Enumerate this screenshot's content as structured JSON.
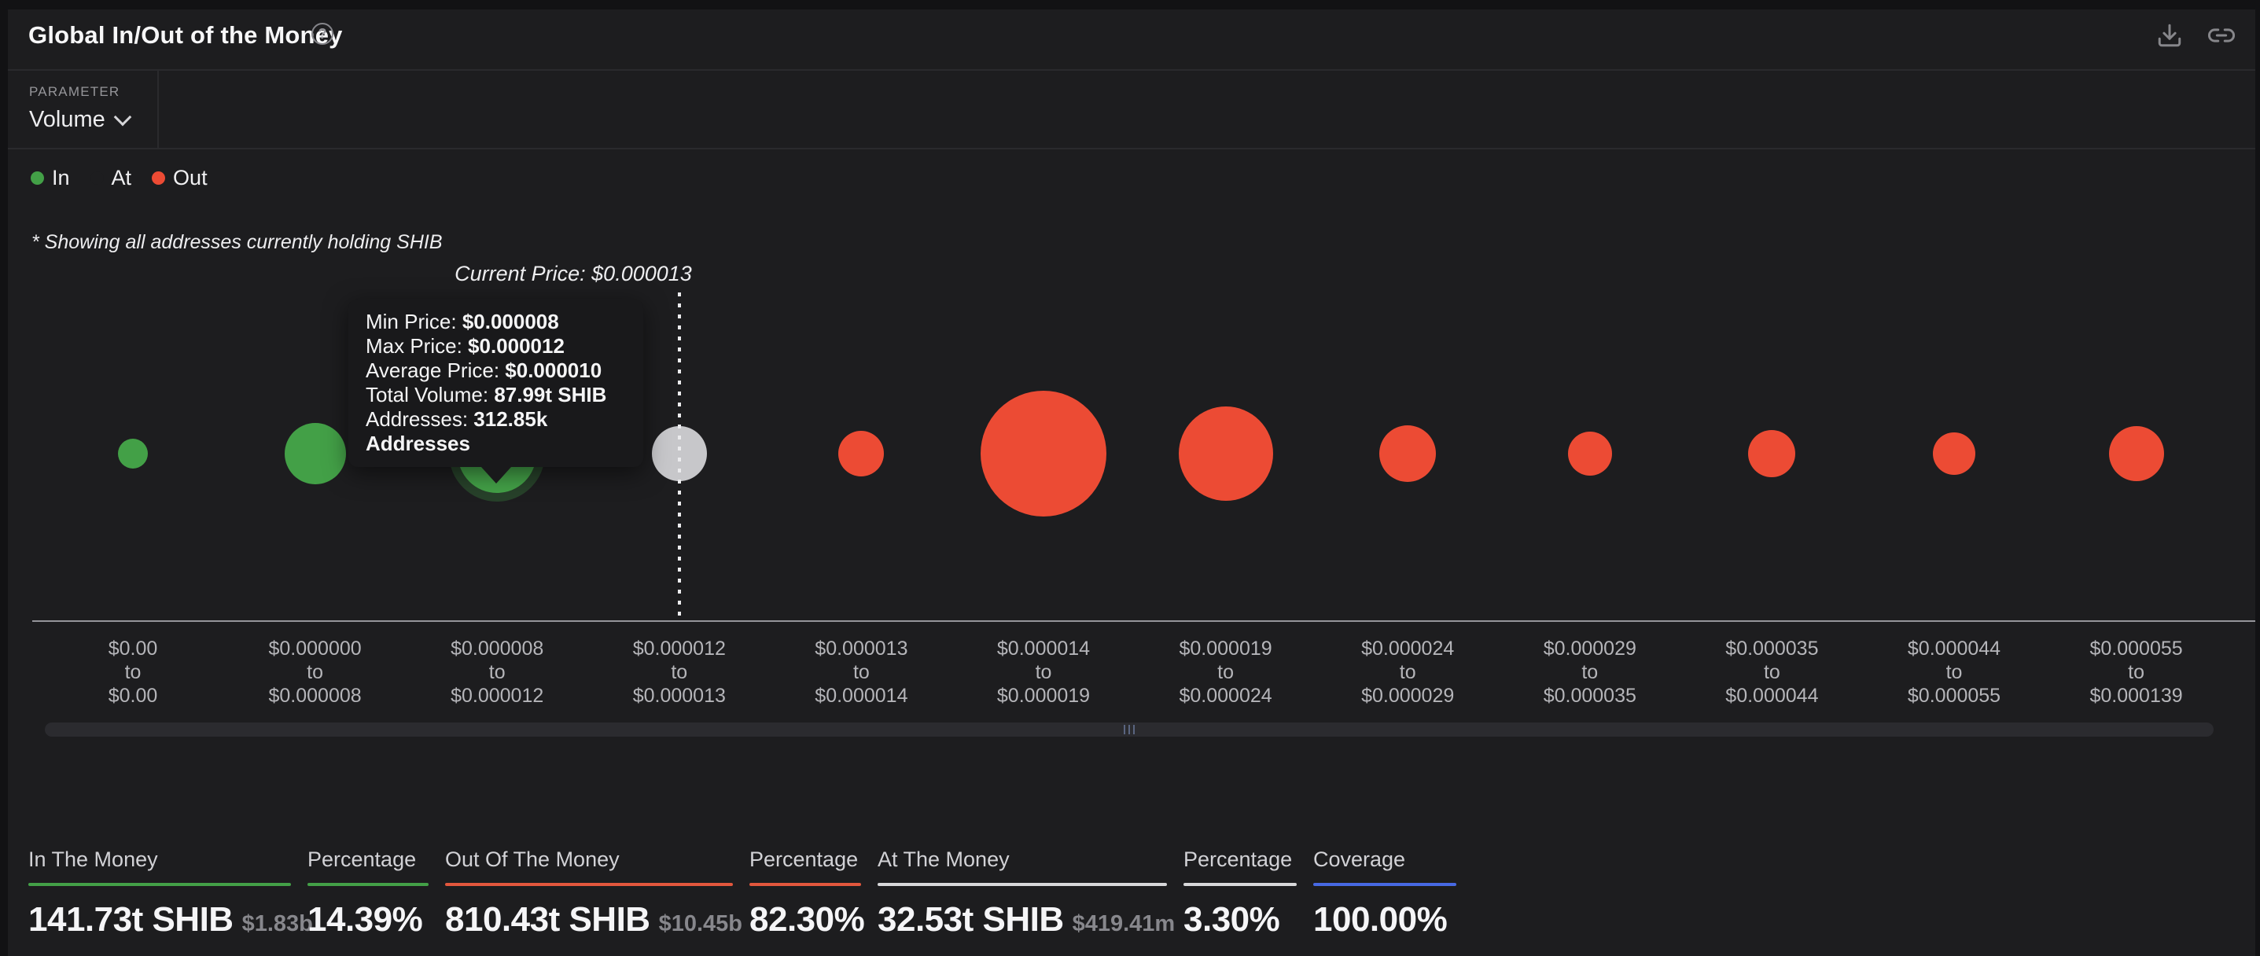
{
  "header": {
    "title": "Global In/Out of the Money",
    "help_glyph": "?",
    "icons": [
      "question-circle-icon",
      "download-icon",
      "link-icon"
    ]
  },
  "parameter": {
    "label": "PARAMETER",
    "value": "Volume"
  },
  "legend": {
    "items": [
      {
        "label": "In",
        "color": "#43a047"
      },
      {
        "label": "At",
        "color": "#1d1d1f"
      },
      {
        "label": "Out",
        "color": "#ec4b34"
      }
    ]
  },
  "note": "* Showing all addresses currently holding SHIB",
  "current_price_label": "Current Price: $0.000013",
  "tooltip": {
    "lines": [
      {
        "label": "Min Price: ",
        "value": "$0.000008"
      },
      {
        "label": "Max Price: ",
        "value": "$0.000012"
      },
      {
        "label": "Average Price: ",
        "value": "$0.000010"
      },
      {
        "label": "Total Volume: ",
        "value": "87.99t SHIB"
      },
      {
        "label": "Addresses: ",
        "value": "312.85k Addresses"
      }
    ]
  },
  "chart_data": {
    "type": "bubble",
    "title": "Global In/Out of the Money",
    "asset": "SHIB",
    "parameter": "Volume",
    "current_price": "$0.000013",
    "current_price_index": 3,
    "axis_separator": "to",
    "statuses": {
      "in": "#43a047",
      "at": "#c7c7ca",
      "out": "#ec4b34"
    },
    "buckets": [
      {
        "range_low": "$0.00",
        "range_high": "$0.00",
        "status": "in",
        "radius_px": 19
      },
      {
        "range_low": "$0.000000",
        "range_high": "$0.000008",
        "status": "in",
        "radius_px": 39
      },
      {
        "range_low": "$0.000008",
        "range_high": "$0.000012",
        "status": "in",
        "radius_px": 50,
        "hovered": true,
        "min_price": "$0.000008",
        "max_price": "$0.000012",
        "average_price": "$0.000010",
        "total_volume": "87.99t SHIB",
        "addresses": "312.85k Addresses"
      },
      {
        "range_low": "$0.000012",
        "range_high": "$0.000013",
        "status": "at",
        "radius_px": 35
      },
      {
        "range_low": "$0.000013",
        "range_high": "$0.000014",
        "status": "out",
        "radius_px": 29
      },
      {
        "range_low": "$0.000014",
        "range_high": "$0.000019",
        "status": "out",
        "radius_px": 80
      },
      {
        "range_low": "$0.000019",
        "range_high": "$0.000024",
        "status": "out",
        "radius_px": 60
      },
      {
        "range_low": "$0.000024",
        "range_high": "$0.000029",
        "status": "out",
        "radius_px": 36
      },
      {
        "range_low": "$0.000029",
        "range_high": "$0.000035",
        "status": "out",
        "radius_px": 28
      },
      {
        "range_low": "$0.000035",
        "range_high": "$0.000044",
        "status": "out",
        "radius_px": 30
      },
      {
        "range_low": "$0.000044",
        "range_high": "$0.000055",
        "status": "out",
        "radius_px": 27
      },
      {
        "range_low": "$0.000055",
        "range_high": "$0.000139",
        "status": "out",
        "radius_px": 35
      }
    ]
  },
  "stats": {
    "columns": [
      {
        "label": "In The Money",
        "value": "141.73t SHIB",
        "subvalue": "$1.83b",
        "underline_color": "#43a047"
      },
      {
        "label": "Percentage",
        "value": "14.39%",
        "subvalue": "",
        "underline_color": "#43a047"
      },
      {
        "label": "Out Of The Money",
        "value": "810.43t SHIB",
        "subvalue": "$10.45b",
        "underline_color": "#e2573d"
      },
      {
        "label": "Percentage",
        "value": "82.30%",
        "subvalue": "",
        "underline_color": "#e2573d"
      },
      {
        "label": "At The Money",
        "value": "32.53t SHIB",
        "subvalue": "$419.41m",
        "underline_color": "#d8d8da"
      },
      {
        "label": "Percentage",
        "value": "3.30%",
        "subvalue": "",
        "underline_color": "#d8d8da"
      },
      {
        "label": "Coverage",
        "value": "100.00%",
        "subvalue": "",
        "underline_color": "#4769e3"
      }
    ]
  }
}
